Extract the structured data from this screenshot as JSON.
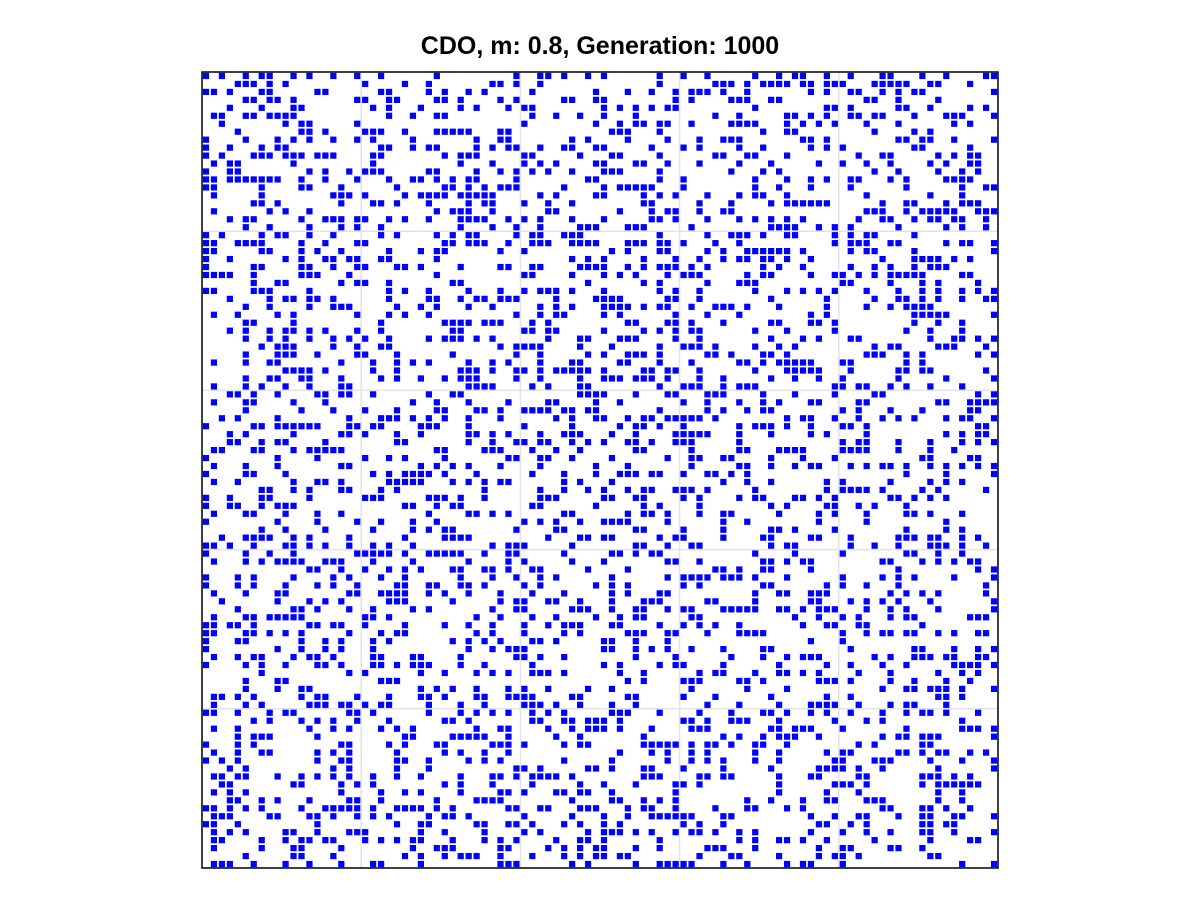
{
  "chart_data": {
    "type": "heatmap",
    "title": "CDO, m: 0.8, Generation: 1000",
    "xlabel": "",
    "ylabel": "",
    "grid": true,
    "grid_size": 100,
    "xlim": [
      0,
      100
    ],
    "ylim": [
      0,
      100
    ],
    "cell_state": "occupied",
    "fill_fraction": 0.3,
    "seed": 1000,
    "colors": {
      "occupied": "#0000ff",
      "empty": "#ffffff",
      "grid": "#e3e3e3",
      "frame": "#000000"
    }
  }
}
